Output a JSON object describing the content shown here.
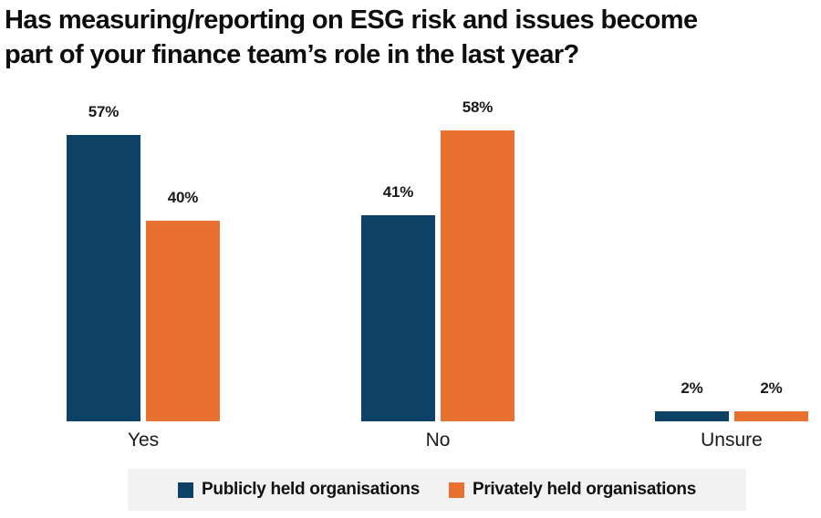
{
  "title": {
    "line1": "Has measuring/reporting on ESG risk and issues become",
    "line2": "part of your finance team’s role in the last year?"
  },
  "chart_data": {
    "type": "bar",
    "title": "Has measuring/reporting on ESG risk and issues become part of your finance team’s role in the last year?",
    "categories": [
      "Yes",
      "No",
      "Unsure"
    ],
    "series": [
      {
        "name": "Publicly held organisations",
        "color": "#0e4166",
        "values": [
          57,
          41,
          2
        ]
      },
      {
        "name": "Privately held organisations",
        "color": "#e8712f",
        "values": [
          40,
          58,
          2
        ]
      }
    ],
    "value_suffix": "%",
    "data_labels": [
      "57%",
      "40%",
      "41%",
      "58%",
      "2%",
      "2%"
    ],
    "ylim": [
      0,
      62
    ],
    "grid": false,
    "axes_visible": false,
    "legend_position": "bottom"
  },
  "legend": {
    "items": [
      {
        "label": "Publicly held organisations",
        "color": "#0e4166"
      },
      {
        "label": "Privately held organisations",
        "color": "#e8712f"
      }
    ],
    "background": "#f2f2f2"
  },
  "colors": {
    "title_text": "#0d0d0d",
    "label_text": "#1a1a1a"
  }
}
